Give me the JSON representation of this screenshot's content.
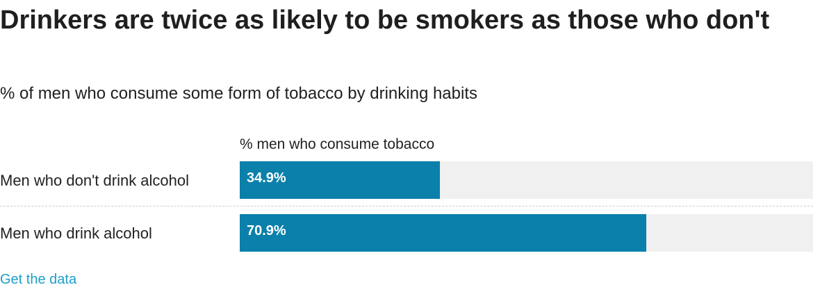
{
  "title": "Drinkers are twice as likely to be smokers as those who don't",
  "subtitle": "% of men who consume some form of tobacco by drinking habits",
  "link_label": "Get the data",
  "colors": {
    "bar": "#0a80aa",
    "track": "#f0f0f0",
    "link": "#1d9fc9"
  },
  "chart_data": {
    "type": "bar",
    "orientation": "horizontal",
    "title": "Drinkers are twice as likely to be smokers as those who don't",
    "subtitle": "% of men who consume some form of tobacco by drinking habits",
    "column_header": "% men who consume tobacco",
    "categories": [
      "Men who don't drink alcohol",
      "Men who drink alcohol"
    ],
    "values": [
      34.9,
      70.9
    ],
    "value_labels": [
      "34.9%",
      "70.9%"
    ],
    "xlim": [
      0,
      100
    ],
    "grid": false
  }
}
